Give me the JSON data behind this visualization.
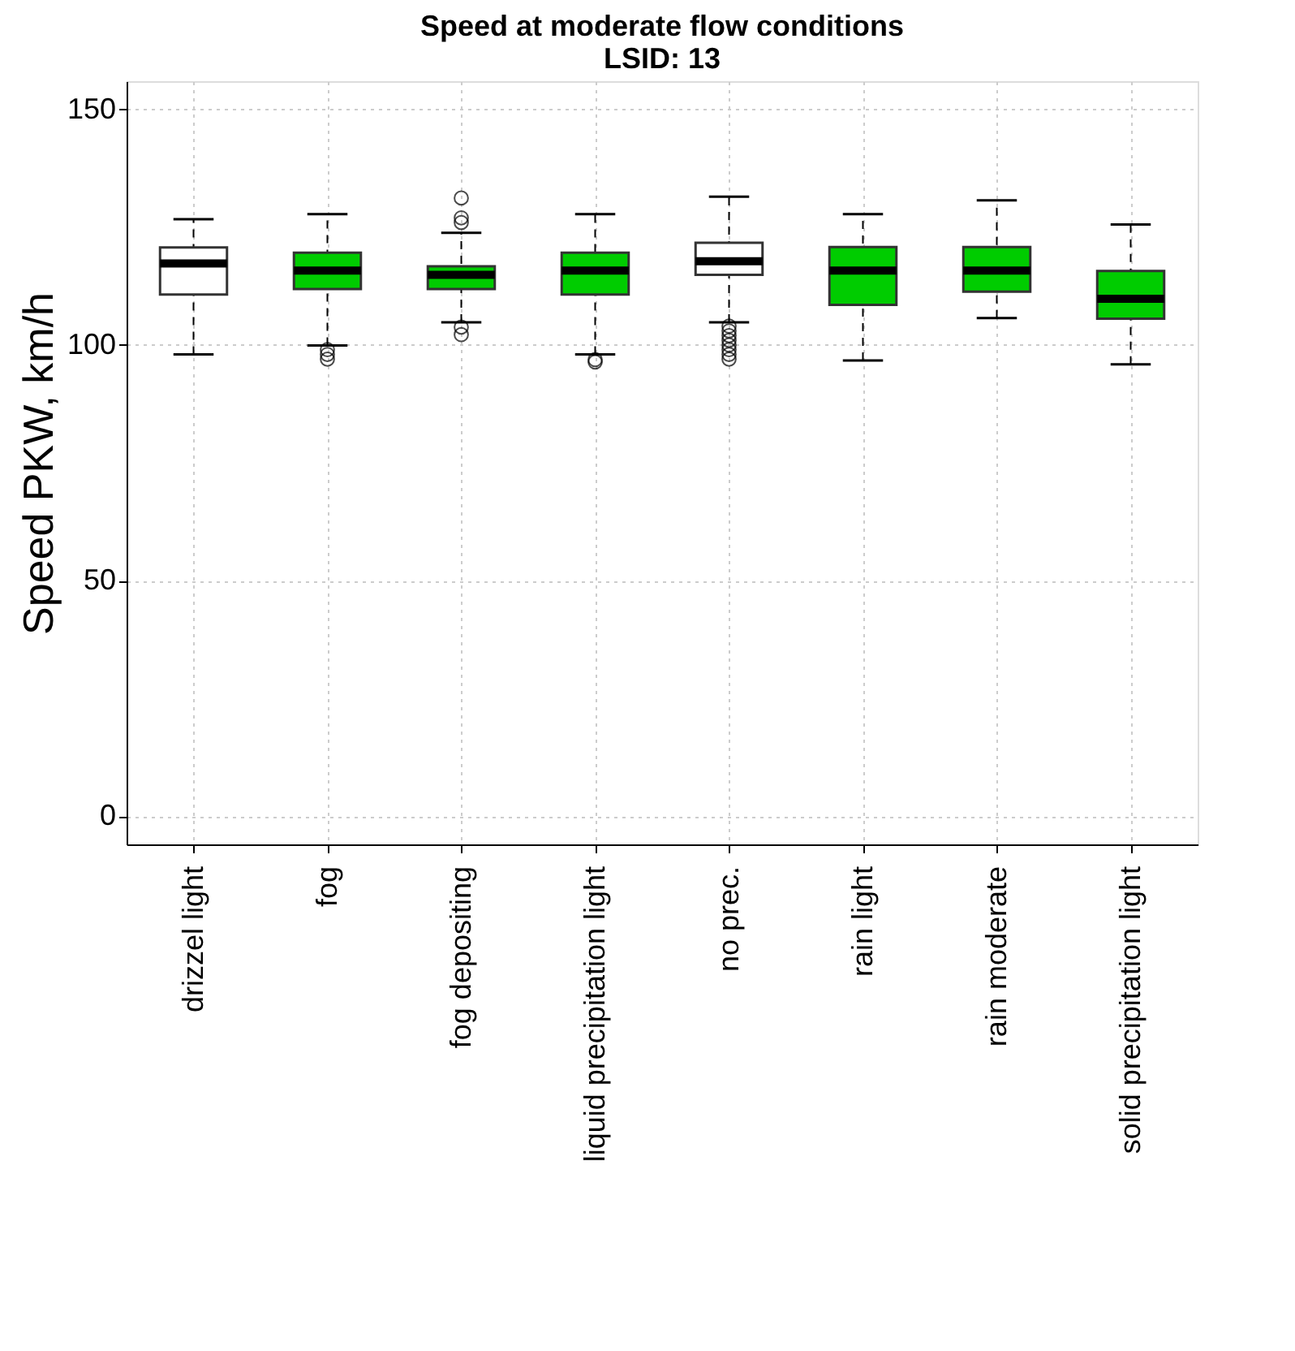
{
  "chart_data": {
    "type": "box",
    "title": "Speed at moderate flow conditions",
    "subtitle": "LSID: 13",
    "ylabel": "Speed PKW, km/h",
    "categories": [
      "drizzel light",
      "fog",
      "fog depositing",
      "liquid precipitation light",
      "no prec.",
      "rain light",
      "rain moderate",
      "solid precipitation light"
    ],
    "colors": [
      "#ffffff",
      "#00cc00",
      "#00cc00",
      "#00cc00",
      "#ffffff",
      "#00cc00",
      "#00cc00",
      "#00cc00"
    ],
    "boxes": [
      {
        "low": 98.0,
        "q1": 110.7,
        "median": 117.3,
        "q3": 120.7,
        "high": 126.7
      },
      {
        "low": 99.9,
        "q1": 111.9,
        "median": 115.8,
        "q3": 119.6,
        "high": 127.8,
        "outliers": [
          99,
          98,
          97
        ]
      },
      {
        "low": 104.8,
        "q1": 111.9,
        "median": 114.9,
        "q3": 116.7,
        "high": 123.8,
        "outliers": [
          131.2,
          127,
          126,
          103.8,
          102.2
        ]
      },
      {
        "low": 98.0,
        "q1": 110.7,
        "median": 115.8,
        "q3": 119.6,
        "high": 127.8,
        "outliers": [
          96.9,
          96.4
        ]
      },
      {
        "low": 104.8,
        "q1": 114.9,
        "median": 117.8,
        "q3": 121.7,
        "high": 131.5,
        "outliers": [
          104,
          103,
          102,
          101,
          100,
          99,
          98,
          97
        ]
      },
      {
        "low": 96.7,
        "q1": 108.5,
        "median": 115.8,
        "q3": 120.8,
        "high": 127.8
      },
      {
        "low": 105.7,
        "q1": 111.3,
        "median": 115.8,
        "q3": 120.8,
        "high": 130.7
      },
      {
        "low": 95.9,
        "q1": 105.6,
        "median": 109.8,
        "q3": 115.7,
        "high": 125.6
      }
    ],
    "ylim": [
      -6,
      156
    ],
    "yticks": [
      0,
      50,
      100,
      150
    ],
    "grid": true
  }
}
